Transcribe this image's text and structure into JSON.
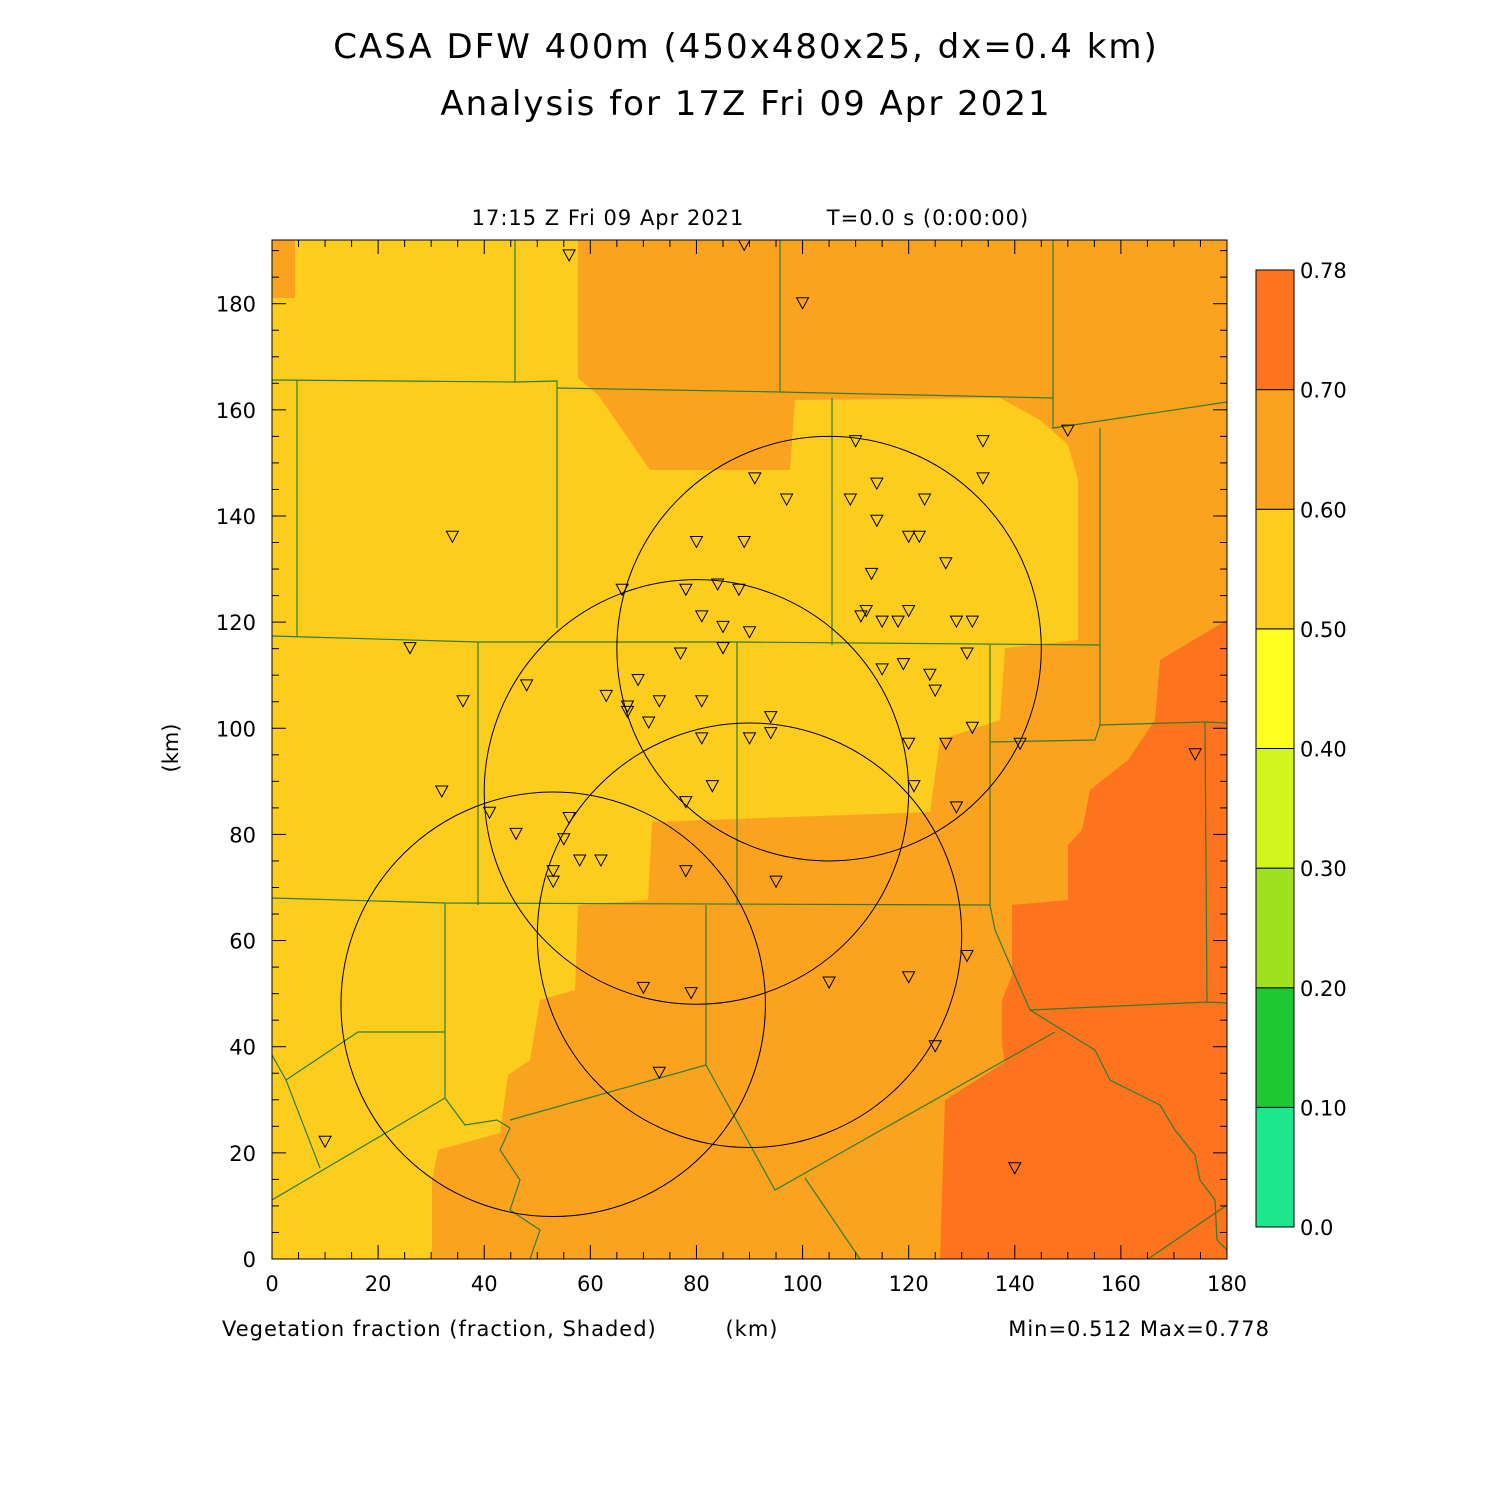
{
  "header": {
    "title_line1": "CASA DFW 400m (450x480x25, dx=0.4 km)",
    "title_line2": "Analysis for 17Z Fri 09 Apr 2021"
  },
  "plot_label": {
    "time_stamp": "17:15 Z Fri 09 Apr 2021",
    "model_time": "T=0.0 s (0:00:00)"
  },
  "footer": {
    "field_label": "Vegetation fraction (fraction, Shaded)",
    "x_unit": "(km)",
    "min_max": "Min=0.512 Max=0.778"
  },
  "chart_data": {
    "type": "heatmap",
    "title": "CASA DFW 400m (450x480x25, dx=0.4 km)",
    "subtitle": "Analysis for 17Z Fri 09 Apr 2021",
    "xlabel": "(km)",
    "ylabel": "(km)",
    "xlim": [
      0,
      180
    ],
    "ylim": [
      0,
      192
    ],
    "x_ticks": [
      0,
      20,
      40,
      60,
      80,
      100,
      120,
      140,
      160,
      180
    ],
    "y_ticks": [
      0,
      20,
      40,
      60,
      80,
      100,
      120,
      140,
      160,
      180
    ],
    "variable": "Vegetation fraction",
    "units": "fraction",
    "min": 0.512,
    "max": 0.778,
    "colorbar": {
      "levels": [
        "0.0",
        "0.10",
        "0.20",
        "0.30",
        "0.40",
        "0.50",
        "0.60",
        "0.70",
        "0.78"
      ],
      "colors": [
        "#1ee68c",
        "#1ec832",
        "#a0e11e",
        "#d2f51e",
        "#ffff1e",
        "#fdcd1e",
        "#fba31e",
        "#fe731e"
      ]
    },
    "colors": {
      "band_050_060": "#fdcd1e",
      "band_060_070": "#fba31e",
      "band_070_078": "#fe731e",
      "county_lines": "#2e7d32",
      "radar_rings": "#000000"
    },
    "radar_range_rings": [
      {
        "cx": 105,
        "cy": 115,
        "r": 40
      },
      {
        "cx": 80,
        "cy": 88,
        "r": 40
      },
      {
        "cx": 53,
        "cy": 48,
        "r": 40
      },
      {
        "cx": 90,
        "cy": 61,
        "r": 40
      }
    ],
    "stations": [
      [
        56,
        189
      ],
      [
        89,
        191
      ],
      [
        100,
        180
      ],
      [
        150,
        156
      ],
      [
        134,
        154
      ],
      [
        110,
        154
      ],
      [
        91,
        147
      ],
      [
        134,
        147
      ],
      [
        114,
        146
      ],
      [
        97,
        143
      ],
      [
        109,
        143
      ],
      [
        123,
        143
      ],
      [
        114,
        139
      ],
      [
        34,
        136
      ],
      [
        80,
        135
      ],
      [
        89,
        135
      ],
      [
        120,
        136
      ],
      [
        122,
        136
      ],
      [
        127,
        131
      ],
      [
        113,
        129
      ],
      [
        66,
        126
      ],
      [
        78,
        126
      ],
      [
        84,
        127
      ],
      [
        88,
        126
      ],
      [
        81,
        121
      ],
      [
        111,
        121
      ],
      [
        112,
        122
      ],
      [
        115,
        120
      ],
      [
        118,
        120
      ],
      [
        120,
        122
      ],
      [
        129,
        120
      ],
      [
        132,
        120
      ],
      [
        85,
        119
      ],
      [
        90,
        118
      ],
      [
        26,
        115
      ],
      [
        85,
        115
      ],
      [
        131,
        114
      ],
      [
        77,
        114
      ],
      [
        69,
        109
      ],
      [
        119,
        112
      ],
      [
        115,
        111
      ],
      [
        124,
        110
      ],
      [
        48,
        108
      ],
      [
        125,
        107
      ],
      [
        36,
        105
      ],
      [
        63,
        106
      ],
      [
        81,
        105
      ],
      [
        73,
        105
      ],
      [
        67,
        104
      ],
      [
        67,
        103
      ],
      [
        94,
        102
      ],
      [
        71,
        101
      ],
      [
        132,
        100
      ],
      [
        94,
        99
      ],
      [
        90,
        98
      ],
      [
        81,
        98
      ],
      [
        127,
        97
      ],
      [
        120,
        97
      ],
      [
        141,
        97
      ],
      [
        174,
        95
      ],
      [
        32,
        88
      ],
      [
        83,
        89
      ],
      [
        121,
        89
      ],
      [
        78,
        86
      ],
      [
        41,
        84
      ],
      [
        129,
        85
      ],
      [
        46,
        80
      ],
      [
        55,
        79
      ],
      [
        56,
        83
      ],
      [
        58,
        75
      ],
      [
        62,
        75
      ],
      [
        53,
        73
      ],
      [
        53,
        71
      ],
      [
        78,
        73
      ],
      [
        95,
        71
      ],
      [
        131,
        57
      ],
      [
        120,
        53
      ],
      [
        105,
        52
      ],
      [
        70,
        51
      ],
      [
        79,
        50
      ],
      [
        125,
        40
      ],
      [
        73,
        35
      ],
      [
        10,
        22
      ],
      [
        140,
        17
      ]
    ]
  }
}
